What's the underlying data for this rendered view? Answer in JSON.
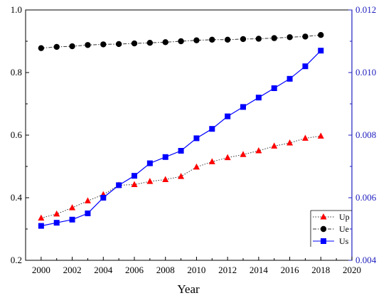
{
  "chart_data": {
    "type": "line",
    "xlabel": "Year",
    "x": [
      2000,
      2001,
      2002,
      2003,
      2004,
      2005,
      2006,
      2007,
      2008,
      2009,
      2010,
      2011,
      2012,
      2013,
      2014,
      2015,
      2016,
      2017,
      2018
    ],
    "x_ticks": [
      "2000",
      "2002",
      "2004",
      "2006",
      "2008",
      "2010",
      "2012",
      "2014",
      "2016",
      "2018",
      "2020"
    ],
    "xlim": [
      1999,
      2020
    ],
    "y_left": {
      "lim": [
        0.2,
        1.0
      ],
      "ticks": [
        "0.2",
        "0.4",
        "0.6",
        "0.8",
        "1.0"
      ]
    },
    "y_right": {
      "lim": [
        0.004,
        0.012
      ],
      "ticks": [
        "0.004",
        "0.006",
        "0.008",
        "0.010",
        "0.012"
      ],
      "color": "#1f1fbf"
    },
    "legend_position": "bottom-right",
    "series": [
      {
        "name": "Up",
        "axis": "left",
        "marker": "triangle",
        "color": "#ff0000",
        "line_style": "dotted",
        "values": [
          0.335,
          0.348,
          0.368,
          0.39,
          0.41,
          0.44,
          0.442,
          0.452,
          0.458,
          0.468,
          0.498,
          0.515,
          0.528,
          0.538,
          0.55,
          0.565,
          0.575,
          0.59,
          0.597
        ]
      },
      {
        "name": "Ue",
        "axis": "left",
        "marker": "circle",
        "color": "#000000",
        "line_style": "dashdot",
        "values": [
          0.878,
          0.882,
          0.884,
          0.888,
          0.89,
          0.891,
          0.893,
          0.895,
          0.897,
          0.9,
          0.903,
          0.905,
          0.905,
          0.907,
          0.908,
          0.91,
          0.913,
          0.915,
          0.92
        ]
      },
      {
        "name": "Us",
        "axis": "right",
        "marker": "square",
        "color": "#0000ff",
        "line_style": "solid",
        "values": [
          0.0051,
          0.0052,
          0.0053,
          0.0055,
          0.006,
          0.0064,
          0.0067,
          0.0071,
          0.0073,
          0.0075,
          0.0079,
          0.0082,
          0.0086,
          0.0089,
          0.0092,
          0.0095,
          0.0098,
          0.0102,
          0.0107
        ]
      }
    ]
  }
}
